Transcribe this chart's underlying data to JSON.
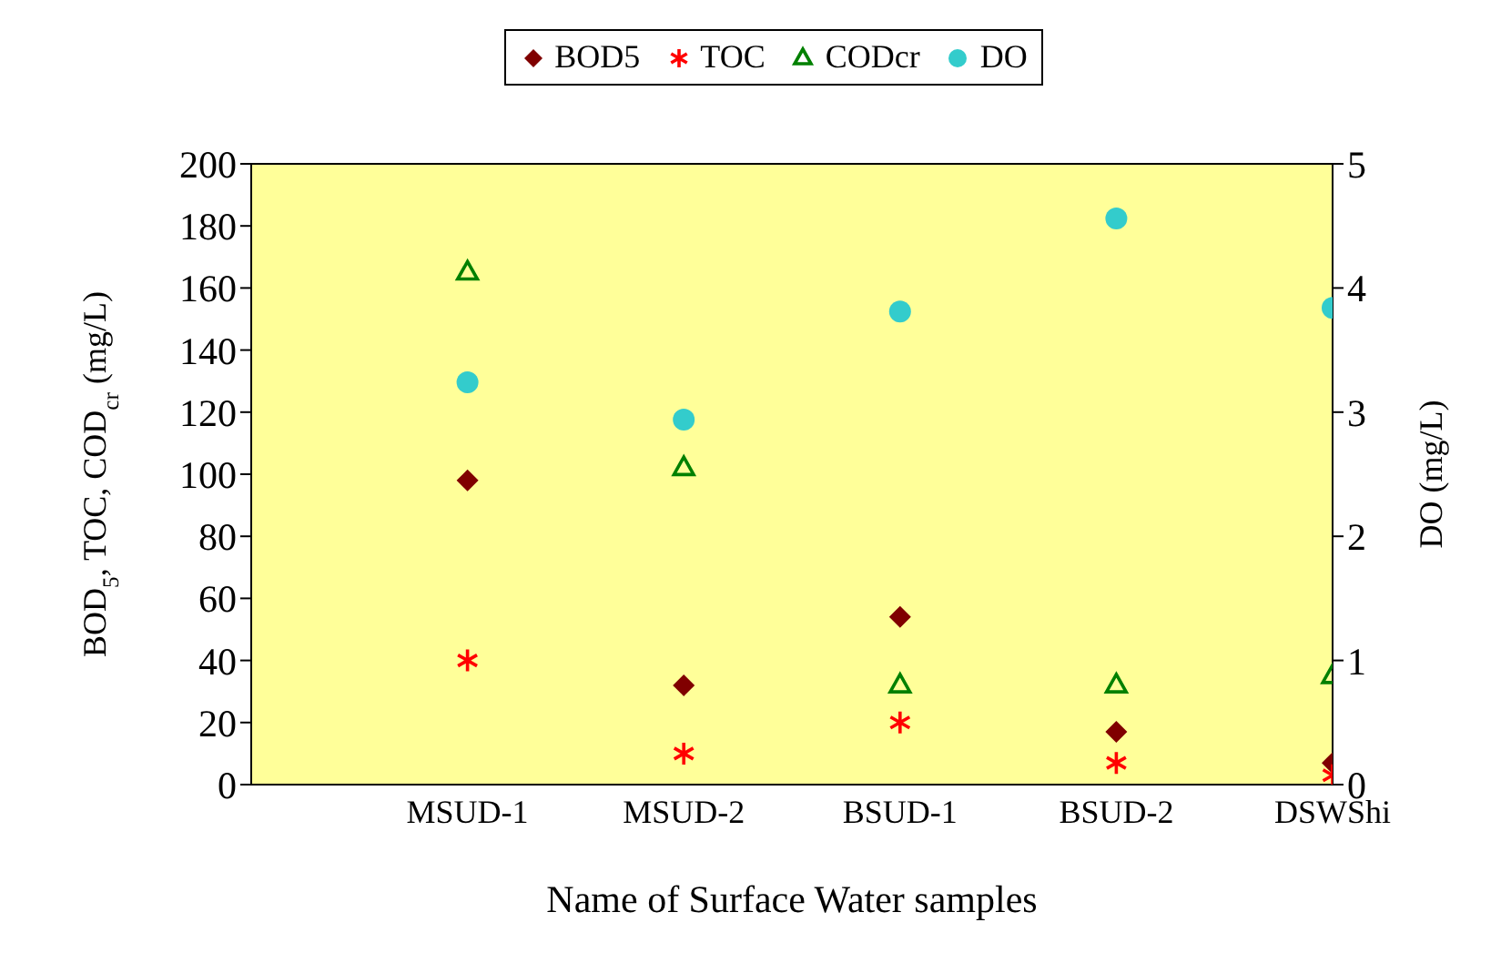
{
  "chart_data": {
    "type": "scatter",
    "categories": [
      null,
      "MSUD-1",
      "MSUD-2",
      "BSUD-1",
      "BSUD-2",
      "DSWShi"
    ],
    "xlabel": "Name of Surface Water samples",
    "ylabel": "BOD$_{5}$, TOC, COD$_{cr}$ (mg/L)",
    "y2label": "DO (mg/L)",
    "ylim": [
      0,
      200
    ],
    "yticks": [
      0,
      20,
      40,
      60,
      80,
      100,
      120,
      140,
      160,
      180,
      200
    ],
    "y2lim": [
      0,
      5
    ],
    "y2ticks": [
      0,
      1,
      2,
      3,
      4,
      5
    ],
    "legend": "top",
    "grid": false,
    "series": [
      {
        "name": "BOD5",
        "color": "#800000",
        "marker": "diamond",
        "values": [
          null,
          98,
          32,
          54,
          17,
          7
        ]
      },
      {
        "name": "TOC",
        "color": "#ff0000",
        "marker": "cross",
        "values": [
          null,
          40,
          10,
          20,
          7,
          3
        ]
      },
      {
        "name": "CODcr",
        "color": "#008000",
        "marker": "triangle",
        "values": [
          null,
          165,
          102,
          32,
          32,
          35
        ]
      },
      {
        "name": "DO",
        "color": "#33cccc",
        "marker": "circle",
        "axis": "y2",
        "values": [
          null,
          3.24,
          2.94,
          3.81,
          4.56,
          3.84
        ]
      }
    ]
  }
}
